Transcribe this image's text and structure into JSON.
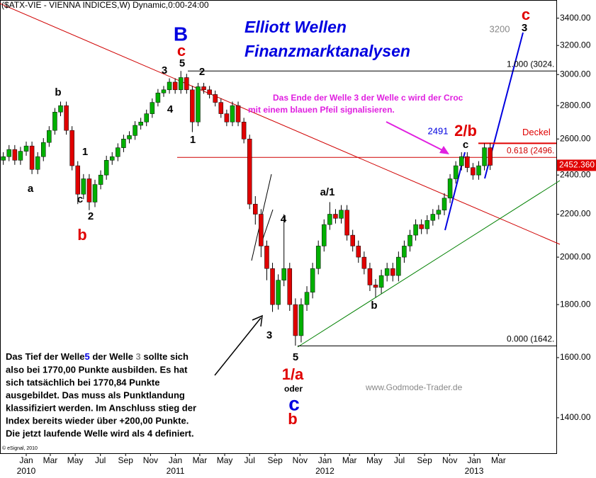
{
  "chart_data": {
    "type": "candlestick",
    "title": "($ATX-VIE - VIENNA INDICES,W) Dynamic,0:00-24:00",
    "headline": [
      "Elliott Wellen",
      "Finanzmarktanalysen"
    ],
    "log_scale": true,
    "up_color": "#00b000",
    "down_color": "#e00000",
    "xlim": [
      -9.16,
      185.1
    ],
    "ylim": [
      1294,
      3540
    ],
    "xticks": [
      {
        "value": 0,
        "label": "Jan"
      },
      {
        "value": 8.4,
        "label": "Mar"
      },
      {
        "value": 17.1,
        "label": "May"
      },
      {
        "value": 25.9,
        "label": "Jul"
      },
      {
        "value": 34.7,
        "label": "Sep"
      },
      {
        "value": 43.4,
        "label": "Nov"
      },
      {
        "value": 52.1,
        "label": "Jan"
      },
      {
        "value": 60.6,
        "label": "Mar"
      },
      {
        "value": 69.3,
        "label": "May"
      },
      {
        "value": 78,
        "label": "Jul"
      },
      {
        "value": 86.9,
        "label": "Sep"
      },
      {
        "value": 95.6,
        "label": "Nov"
      },
      {
        "value": 104.3,
        "label": "Jan"
      },
      {
        "value": 112.9,
        "label": "Mar"
      },
      {
        "value": 121.6,
        "label": "May"
      },
      {
        "value": 130.3,
        "label": "Jul"
      },
      {
        "value": 139.1,
        "label": "Sep"
      },
      {
        "value": 147.9,
        "label": "Nov"
      },
      {
        "value": 156.4,
        "label": "Jan"
      },
      {
        "value": 164.9,
        "label": "Mar"
      }
    ],
    "year_ticks": [
      {
        "value": 0,
        "label": "2010"
      },
      {
        "value": 52.1,
        "label": "2011"
      },
      {
        "value": 104.3,
        "label": "2012"
      },
      {
        "value": 156.4,
        "label": "2013"
      }
    ],
    "yticks": [
      {
        "value": 1400,
        "label": "1400.00"
      },
      {
        "value": 1600,
        "label": "1600.00"
      },
      {
        "value": 1800,
        "label": "1800.00"
      },
      {
        "value": 2000,
        "label": "2000.00"
      },
      {
        "value": 2200,
        "label": "2200.00"
      },
      {
        "value": 2400,
        "label": "2400.00"
      },
      {
        "value": 2600,
        "label": "2600.00"
      },
      {
        "value": 2800,
        "label": "2800.00"
      },
      {
        "value": 3000,
        "label": "3000.00"
      },
      {
        "value": 3200,
        "label": "3200.00"
      },
      {
        "value": 3400,
        "label": "3400.00"
      }
    ],
    "x": [
      -8,
      -6,
      -4,
      -2,
      0,
      2,
      4,
      6,
      8,
      10,
      12,
      14,
      16,
      18,
      20,
      22,
      24,
      26,
      28,
      30,
      32,
      34,
      36,
      38,
      40,
      42,
      44,
      46,
      48,
      50,
      52,
      54,
      56,
      58,
      60,
      62,
      64,
      66,
      68,
      70,
      72,
      74,
      76,
      78,
      80,
      82,
      84,
      86,
      88,
      90,
      92,
      94,
      96,
      98,
      100,
      102,
      104,
      106,
      108,
      110,
      112,
      114,
      116,
      118,
      120,
      122,
      124,
      126,
      128,
      130,
      132,
      134,
      136,
      138,
      140,
      142,
      144,
      146,
      148,
      150,
      152,
      154,
      156,
      158,
      160,
      162
    ],
    "ohlc": [
      [
        2480,
        2525,
        2455,
        2500
      ],
      [
        2500,
        2565,
        2475,
        2540
      ],
      [
        2540,
        2565,
        2455,
        2480
      ],
      [
        2480,
        2555,
        2455,
        2530
      ],
      [
        2530,
        2585,
        2505,
        2560
      ],
      [
        2560,
        2585,
        2405,
        2430
      ],
      [
        2430,
        2525,
        2405,
        2500
      ],
      [
        2500,
        2605,
        2475,
        2580
      ],
      [
        2580,
        2675,
        2555,
        2650
      ],
      [
        2650,
        2785,
        2625,
        2760
      ],
      [
        2760,
        2825,
        2735,
        2800
      ],
      [
        2800,
        2825,
        2625,
        2650
      ],
      [
        2650,
        2675,
        2425,
        2450
      ],
      [
        2450,
        2475,
        2250,
        2300
      ],
      [
        2300,
        2405,
        2275,
        2380
      ],
      [
        2380,
        2405,
        2220,
        2260
      ],
      [
        2260,
        2375,
        2235,
        2350
      ],
      [
        2350,
        2425,
        2325,
        2400
      ],
      [
        2400,
        2505,
        2375,
        2480
      ],
      [
        2480,
        2525,
        2455,
        2500
      ],
      [
        2500,
        2575,
        2475,
        2550
      ],
      [
        2550,
        2625,
        2525,
        2600
      ],
      [
        2600,
        2645,
        2575,
        2620
      ],
      [
        2620,
        2705,
        2595,
        2680
      ],
      [
        2680,
        2725,
        2655,
        2700
      ],
      [
        2700,
        2775,
        2675,
        2750
      ],
      [
        2750,
        2845,
        2725,
        2820
      ],
      [
        2820,
        2905,
        2795,
        2880
      ],
      [
        2880,
        2925,
        2855,
        2900
      ],
      [
        2900,
        2975,
        2875,
        2950
      ],
      [
        2950,
        2975,
        2875,
        2900
      ],
      [
        2900,
        3024,
        2875,
        2980
      ],
      [
        2980,
        3005,
        2875,
        2900
      ],
      [
        2900,
        2925,
        2640,
        2700
      ],
      [
        2700,
        2945,
        2675,
        2920
      ],
      [
        2920,
        2945,
        2875,
        2900
      ],
      [
        2900,
        2925,
        2845,
        2870
      ],
      [
        2870,
        2895,
        2795,
        2820
      ],
      [
        2820,
        2845,
        2725,
        2750
      ],
      [
        2750,
        2775,
        2675,
        2700
      ],
      [
        2700,
        2825,
        2675,
        2800
      ],
      [
        2800,
        2825,
        2675,
        2700
      ],
      [
        2700,
        2725,
        2575,
        2600
      ],
      [
        2600,
        2625,
        2225,
        2250
      ],
      [
        2250,
        2290,
        2150,
        2200
      ],
      [
        2200,
        2225,
        2000,
        2050
      ],
      [
        2050,
        2075,
        1900,
        1950
      ],
      [
        1950,
        1975,
        1771,
        1800
      ],
      [
        1800,
        1925,
        1780,
        1900
      ],
      [
        1900,
        2200,
        1875,
        1950
      ],
      [
        1950,
        1975,
        1775,
        1800
      ],
      [
        1800,
        1825,
        1643,
        1680
      ],
      [
        1680,
        1825,
        1655,
        1800
      ],
      [
        1800,
        1875,
        1775,
        1850
      ],
      [
        1850,
        1975,
        1825,
        1950
      ],
      [
        1950,
        2075,
        1925,
        2050
      ],
      [
        2050,
        2175,
        2025,
        2150
      ],
      [
        2150,
        2260,
        2125,
        2200
      ],
      [
        2200,
        2225,
        2155,
        2180
      ],
      [
        2180,
        2245,
        2155,
        2220
      ],
      [
        2220,
        2245,
        2075,
        2100
      ],
      [
        2100,
        2125,
        2025,
        2050
      ],
      [
        2050,
        2075,
        1975,
        2000
      ],
      [
        2000,
        2025,
        1925,
        1950
      ],
      [
        1950,
        1975,
        1855,
        1880
      ],
      [
        1880,
        1905,
        1830,
        1870
      ],
      [
        1870,
        1945,
        1845,
        1920
      ],
      [
        1920,
        1975,
        1895,
        1950
      ],
      [
        1950,
        1975,
        1895,
        1920
      ],
      [
        1920,
        2025,
        1895,
        2000
      ],
      [
        2000,
        2075,
        1975,
        2050
      ],
      [
        2050,
        2125,
        2025,
        2100
      ],
      [
        2100,
        2175,
        2075,
        2150
      ],
      [
        2150,
        2175,
        2105,
        2130
      ],
      [
        2130,
        2195,
        2105,
        2170
      ],
      [
        2170,
        2225,
        2145,
        2200
      ],
      [
        2200,
        2245,
        2175,
        2220
      ],
      [
        2220,
        2305,
        2195,
        2280
      ],
      [
        2280,
        2405,
        2255,
        2380
      ],
      [
        2380,
        2475,
        2355,
        2450
      ],
      [
        2450,
        2525,
        2425,
        2500
      ],
      [
        2500,
        2525,
        2415,
        2440
      ],
      [
        2440,
        2465,
        2375,
        2400
      ],
      [
        2400,
        2475,
        2375,
        2450
      ],
      [
        2450,
        2575,
        2425,
        2550
      ],
      [
        2550,
        2575,
        2427,
        2452.36
      ]
    ],
    "last_price": {
      "value": 2452.36,
      "label": "2452.360"
    },
    "levels": [
      {
        "value": 3024,
        "label": "1.000 (3024.",
        "color": "#000000"
      },
      {
        "value": 2496,
        "label": "0.618 (2496.",
        "color": "#d00000"
      },
      {
        "value": 1642,
        "label": "0.000 (1642.",
        "color": "#000000"
      }
    ],
    "cap": {
      "value": 2575,
      "label": "Deckel",
      "color": "#e00000"
    },
    "annotations": [
      {
        "text": "b",
        "color": "#000000"
      },
      {
        "text": "a",
        "color": "#000000"
      },
      {
        "text": "1",
        "color": "#000000"
      },
      {
        "text": "c",
        "color": "#000000"
      },
      {
        "text": "2",
        "color": "#000000"
      },
      {
        "text": "b",
        "color": "#e00000"
      },
      {
        "text": "3",
        "color": "#000000"
      },
      {
        "text": "5",
        "color": "#000000"
      },
      {
        "text": "c",
        "color": "#e00000"
      },
      {
        "text": "B",
        "color": "#0000e0"
      },
      {
        "text": "4",
        "color": "#000000"
      },
      {
        "text": "2",
        "color": "#000000"
      },
      {
        "text": "1",
        "color": "#000000"
      },
      {
        "text": "4",
        "color": "#000000"
      },
      {
        "text": "3",
        "color": "#000000"
      },
      {
        "text": "5",
        "color": "#000000"
      },
      {
        "text": "1/a",
        "color": "#e00000"
      },
      {
        "text": "oder",
        "color": "#000000"
      },
      {
        "text": "c",
        "color": "#0000e0"
      },
      {
        "text": "b",
        "color": "#e00000"
      },
      {
        "text": "a/1",
        "color": "#000000"
      },
      {
        "text": "b",
        "color": "#000000"
      },
      {
        "text": "2491",
        "color": "#0000e0"
      },
      {
        "text": "2/b",
        "color": "#e00000"
      },
      {
        "text": "c",
        "color": "#000000"
      },
      {
        "text": "3200",
        "color": "#888888"
      },
      {
        "text": "3",
        "color": "#000000"
      },
      {
        "text": "c",
        "color": "#e00000"
      },
      {
        "text": "Das Ende der Welle 3 der Welle c wird der Croc",
        "color": "#e020e0"
      },
      {
        "text": "mit einem blauen Pfeil signalisieren.",
        "color": "#e020e0"
      }
    ],
    "note": {
      "first_line": [
        {
          "text": "Das Tief der Welle",
          "color": "#000000"
        },
        {
          "text": "5",
          "color": "#0000e0"
        },
        {
          "text": " der Welle ",
          "color": "#000000"
        },
        {
          "text": "3",
          "color": "#888888"
        },
        {
          "text": " sollte sich",
          "color": "#000000"
        }
      ],
      "lines": [
        "also bei 1770,00 Punkte ausbilden. Es hat",
        "sich tatsächlich bei 1770,84 Punkte",
        "ausgebildet. Das muss als Punktlandung",
        "klassifiziert werden. Im Anschluss stieg der",
        "Index bereits wieder über +200,00 Punkte.",
        "Die jetzt laufende Welle wird als 4 definiert."
      ]
    },
    "watermark": "www.Godmode-Trader.de",
    "copyright": "© eSignal, 2010"
  }
}
